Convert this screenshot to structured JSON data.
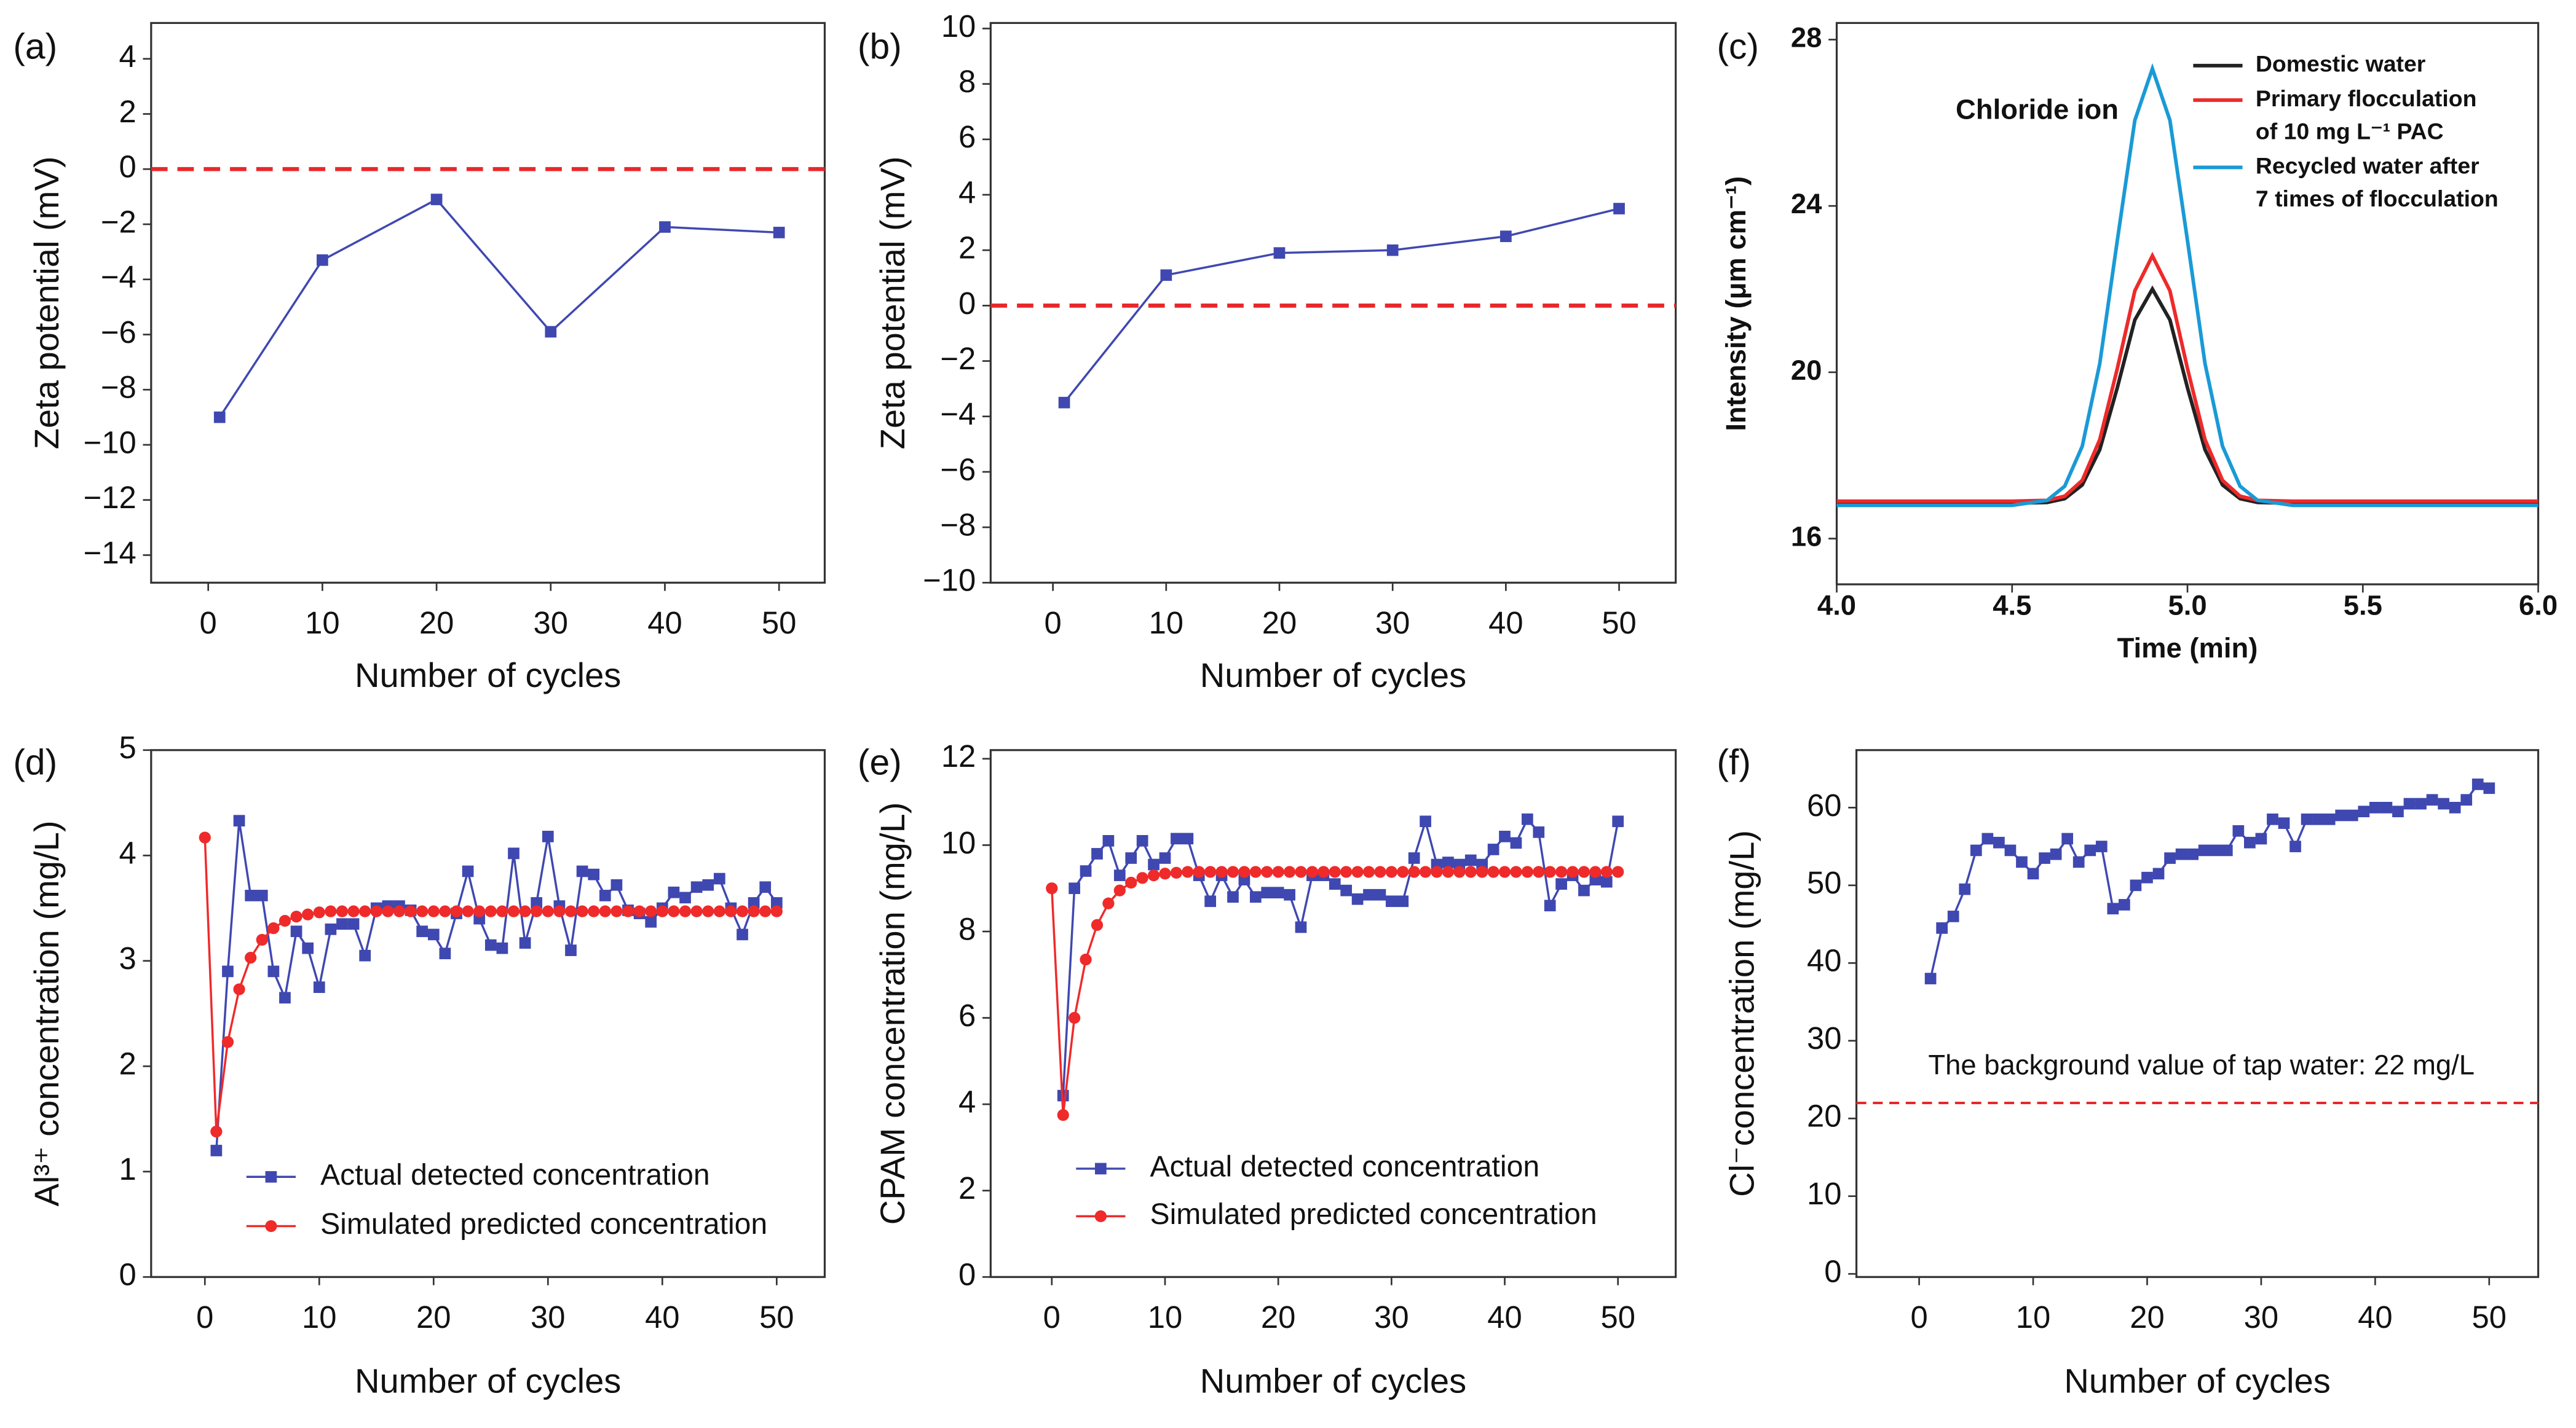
{
  "chart_data": [
    {
      "type": "line",
      "label": "(a)",
      "x_label": "Number of cycles",
      "y_label": "Zeta potential (mV)",
      "xlim": [
        -5,
        54
      ],
      "ylim": [
        -15,
        5.3
      ],
      "xticks": [
        0,
        10,
        20,
        30,
        40,
        50
      ],
      "yticks": [
        {
          "value": -14,
          "label": "−14"
        },
        {
          "value": -12,
          "label": "−12"
        },
        {
          "value": -10,
          "label": "−10"
        },
        {
          "value": -8,
          "label": "−8"
        },
        {
          "value": -6,
          "label": "−6"
        },
        {
          "value": -4,
          "label": "−4"
        },
        {
          "value": -2,
          "label": "−2"
        },
        0,
        2,
        4
      ],
      "reference_line": 0,
      "reference_color": "#e8282b",
      "series": [
        {
          "color": "#3f48b0",
          "marker": "square",
          "x": [
            1,
            10,
            20,
            30,
            40,
            50
          ],
          "values": [
            -9,
            -3.3,
            -1.1,
            -5.9,
            -2.1,
            -2.3
          ]
        }
      ]
    },
    {
      "type": "line",
      "label": "(b)",
      "x_label": "Number of cycles",
      "y_label": "Zeta potential (mV)",
      "xlim": [
        -5.5,
        55
      ],
      "ylim": [
        -10,
        10.2
      ],
      "xticks": [
        0,
        10,
        20,
        30,
        40,
        50
      ],
      "yticks": [
        {
          "value": -10,
          "label": "−10"
        },
        {
          "value": -8,
          "label": "−8"
        },
        {
          "value": -6,
          "label": "−6"
        },
        {
          "value": -4,
          "label": "−4"
        },
        {
          "value": -2,
          "label": "−2"
        },
        0,
        2,
        4,
        6,
        8,
        10
      ],
      "reference_line": 0,
      "reference_color": "#e8282b",
      "series": [
        {
          "color": "#3f48b0",
          "marker": "square",
          "x": [
            1,
            10,
            20,
            30,
            40,
            50
          ],
          "values": [
            -3.5,
            1.1,
            1.9,
            2.0,
            2.5,
            3.5
          ]
        }
      ]
    },
    {
      "type": "line",
      "label": "(c)",
      "x_label": "Time (min)",
      "y_label": "Intensity (μm cm⁻¹)",
      "annotation": "Chloride ion",
      "xlim": [
        4,
        6
      ],
      "ylim": [
        14.9,
        28.4
      ],
      "xticks": [
        {
          "value": 4,
          "label": "4.0"
        },
        {
          "value": 4.5,
          "label": "4.5"
        },
        {
          "value": 5,
          "label": "5.0"
        },
        {
          "value": 5.5,
          "label": "5.5"
        },
        {
          "value": 6,
          "label": "6.0"
        }
      ],
      "yticks": [
        16,
        20,
        24,
        28
      ],
      "series": [
        {
          "name": "Domestic water",
          "color": "#222222",
          "marker": "none",
          "x": [
            4.0,
            4.5,
            4.6,
            4.65,
            4.7,
            4.75,
            4.8,
            4.85,
            4.9,
            4.95,
            5.0,
            5.05,
            5.1,
            5.15,
            5.2,
            5.3,
            6.0
          ],
          "values": [
            16.85,
            16.85,
            16.87,
            16.96,
            17.29,
            18.14,
            19.63,
            21.26,
            22.0,
            21.26,
            19.63,
            18.14,
            17.29,
            16.96,
            16.87,
            16.85,
            16.85
          ]
        },
        {
          "name": "Primary flocculation of 10 mg L⁻¹ PAC",
          "color": "#ee2a2a",
          "marker": "none",
          "x": [
            4.0,
            4.5,
            4.6,
            4.65,
            4.7,
            4.75,
            4.8,
            4.85,
            4.9,
            4.95,
            5.0,
            5.05,
            5.1,
            5.15,
            5.2,
            5.3,
            6.0
          ],
          "values": [
            16.9,
            16.9,
            16.92,
            17.02,
            17.4,
            18.38,
            20.09,
            21.96,
            22.8,
            21.96,
            20.09,
            18.38,
            17.4,
            17.02,
            16.92,
            16.9,
            16.9
          ]
        },
        {
          "name": "Recycled water after 7 times of flocculation",
          "color": "#1a9ad6",
          "marker": "none",
          "x": [
            4.0,
            4.5,
            4.6,
            4.65,
            4.7,
            4.75,
            4.8,
            4.85,
            4.9,
            4.95,
            5.0,
            5.05,
            5.1,
            5.15,
            5.2,
            5.3,
            6.0
          ],
          "values": [
            16.8,
            16.8,
            16.92,
            17.26,
            18.22,
            20.21,
            23.17,
            26.06,
            27.3,
            26.06,
            23.17,
            20.21,
            18.22,
            17.26,
            16.92,
            16.8,
            16.8
          ]
        }
      ]
    },
    {
      "type": "line",
      "label": "(d)",
      "x_label": "Number of cycles",
      "y_label": "Al³⁺ concentration (mg/L)",
      "xlim": [
        -4.7,
        54.2
      ],
      "ylim": [
        0,
        5
      ],
      "xticks": [
        0,
        10,
        20,
        30,
        40,
        50
      ],
      "yticks": [
        0,
        1,
        2,
        3,
        4,
        5
      ],
      "series": [
        {
          "name": "Actual detected concentration",
          "color": "#3f48b0",
          "marker": "square",
          "x": [
            1,
            2,
            3,
            4,
            5,
            6,
            7,
            8,
            9,
            10,
            11,
            12,
            13,
            14,
            15,
            16,
            17,
            18,
            19,
            20,
            21,
            22,
            23,
            24,
            25,
            26,
            27,
            28,
            29,
            30,
            31,
            32,
            33,
            34,
            35,
            36,
            37,
            38,
            39,
            40,
            41,
            42,
            43,
            44,
            45,
            46,
            47,
            48,
            49,
            50
          ],
          "values": [
            1.2,
            2.9,
            4.33,
            3.62,
            3.62,
            2.9,
            2.65,
            3.28,
            3.12,
            2.75,
            3.3,
            3.35,
            3.35,
            3.05,
            3.5,
            3.52,
            3.52,
            3.48,
            3.28,
            3.25,
            3.07,
            3.45,
            3.85,
            3.4,
            3.15,
            3.12,
            4.02,
            3.17,
            3.55,
            4.18,
            3.52,
            3.1,
            3.85,
            3.82,
            3.62,
            3.72,
            3.48,
            3.45,
            3.37,
            3.5,
            3.65,
            3.6,
            3.7,
            3.72,
            3.78,
            3.5,
            3.25,
            3.55,
            3.7,
            3.55
          ]
        },
        {
          "name": "Simulated predicted concentration",
          "color": "#ef2a2a",
          "marker": "circle",
          "x": [
            0,
            1,
            2,
            3,
            4,
            5,
            6,
            7,
            8,
            9,
            10,
            11,
            12,
            13,
            14,
            15,
            16,
            17,
            18,
            19,
            20,
            21,
            22,
            23,
            24,
            25,
            26,
            27,
            28,
            29,
            30,
            31,
            32,
            33,
            34,
            35,
            36,
            37,
            38,
            39,
            40,
            41,
            42,
            43,
            44,
            45,
            46,
            47,
            48,
            49,
            50
          ],
          "values": [
            4.17,
            1.38,
            2.23,
            2.73,
            3.03,
            3.2,
            3.31,
            3.38,
            3.42,
            3.44,
            3.46,
            3.47,
            3.47,
            3.47,
            3.47,
            3.47,
            3.47,
            3.47,
            3.47,
            3.47,
            3.47,
            3.47,
            3.47,
            3.47,
            3.47,
            3.47,
            3.47,
            3.47,
            3.47,
            3.47,
            3.47,
            3.47,
            3.47,
            3.47,
            3.47,
            3.47,
            3.47,
            3.47,
            3.47,
            3.47,
            3.47,
            3.47,
            3.47,
            3.47,
            3.47,
            3.47,
            3.47,
            3.47,
            3.47,
            3.47,
            3.47
          ]
        }
      ]
    },
    {
      "type": "line",
      "label": "(e)",
      "x_label": "Number of cycles",
      "y_label": "CPAM concentration (mg/L)",
      "xlim": [
        -5.4,
        55.1
      ],
      "ylim": [
        0,
        12.2
      ],
      "xticks": [
        0,
        10,
        20,
        30,
        40,
        50
      ],
      "yticks": [
        0,
        2,
        4,
        6,
        8,
        10,
        12
      ],
      "series": [
        {
          "name": "Actual detected concentration",
          "color": "#3f48b0",
          "marker": "square",
          "x": [
            1,
            2,
            3,
            4,
            5,
            6,
            7,
            8,
            9,
            10,
            11,
            12,
            13,
            14,
            15,
            16,
            17,
            18,
            19,
            20,
            21,
            22,
            23,
            24,
            25,
            26,
            27,
            28,
            29,
            30,
            31,
            32,
            33,
            34,
            35,
            36,
            37,
            38,
            39,
            40,
            41,
            42,
            43,
            44,
            45,
            46,
            47,
            48,
            49,
            50
          ],
          "values": [
            4.2,
            9.0,
            9.4,
            9.8,
            10.1,
            9.3,
            9.7,
            10.1,
            9.55,
            9.7,
            10.15,
            10.15,
            9.3,
            8.7,
            9.3,
            8.8,
            9.2,
            8.8,
            8.9,
            8.9,
            8.85,
            8.1,
            9.3,
            9.3,
            9.1,
            8.95,
            8.75,
            8.85,
            8.85,
            8.7,
            8.7,
            9.7,
            10.55,
            9.55,
            9.6,
            9.55,
            9.65,
            9.55,
            9.9,
            10.2,
            10.05,
            10.6,
            10.3,
            8.6,
            9.1,
            9.3,
            8.95,
            9.2,
            9.15,
            10.55
          ]
        },
        {
          "name": "Simulated predicted concentration",
          "color": "#ef2a2a",
          "marker": "circle",
          "x": [
            0,
            1,
            2,
            3,
            4,
            5,
            6,
            7,
            8,
            9,
            10,
            11,
            12,
            13,
            14,
            15,
            16,
            17,
            18,
            19,
            20,
            21,
            22,
            23,
            24,
            25,
            26,
            27,
            28,
            29,
            30,
            31,
            32,
            33,
            34,
            35,
            36,
            37,
            38,
            39,
            40,
            41,
            42,
            43,
            44,
            45,
            46,
            47,
            48,
            49,
            50
          ],
          "values": [
            9.0,
            3.75,
            6.0,
            7.35,
            8.15,
            8.65,
            8.95,
            9.13,
            9.24,
            9.3,
            9.34,
            9.36,
            9.38,
            9.38,
            9.38,
            9.38,
            9.38,
            9.38,
            9.38,
            9.38,
            9.38,
            9.38,
            9.38,
            9.38,
            9.38,
            9.38,
            9.38,
            9.38,
            9.38,
            9.38,
            9.38,
            9.38,
            9.38,
            9.38,
            9.38,
            9.38,
            9.38,
            9.38,
            9.38,
            9.38,
            9.38,
            9.38,
            9.38,
            9.38,
            9.38,
            9.38,
            9.38,
            9.38,
            9.38,
            9.38,
            9.38
          ]
        }
      ]
    },
    {
      "type": "line",
      "label": "(f)",
      "x_label": "Number of cycles",
      "y_label": "Cl⁻concentration (mg/L)",
      "annotation": "The background value of tap water: 22 mg/L",
      "xlim": [
        -5.5,
        54.3
      ],
      "ylim": [
        -0.4,
        67.4
      ],
      "xticks": [
        0,
        10,
        20,
        30,
        40,
        50
      ],
      "yticks": [
        0,
        10,
        20,
        30,
        40,
        50,
        60
      ],
      "reference_line": 22,
      "reference_color": "#e8282b",
      "series": [
        {
          "color": "#3f48b0",
          "marker": "square",
          "x": [
            1,
            2,
            3,
            4,
            5,
            6,
            7,
            8,
            9,
            10,
            11,
            12,
            13,
            14,
            15,
            16,
            17,
            18,
            19,
            20,
            21,
            22,
            23,
            24,
            25,
            26,
            27,
            28,
            29,
            30,
            31,
            32,
            33,
            34,
            35,
            36,
            37,
            38,
            39,
            40,
            41,
            42,
            43,
            44,
            45,
            46,
            47,
            48,
            49,
            50
          ],
          "values": [
            38,
            44.5,
            46,
            49.5,
            54.5,
            56,
            55.5,
            54.5,
            53,
            51.5,
            53.5,
            54,
            56,
            53,
            54.5,
            55,
            47,
            47.5,
            50,
            51,
            51.5,
            53.5,
            54,
            54,
            54.5,
            54.5,
            54.5,
            57,
            55.5,
            56,
            58.5,
            58,
            55,
            58.5,
            58.5,
            58.5,
            59,
            59,
            59.5,
            60,
            60,
            59.5,
            60.5,
            60.5,
            61,
            60.5,
            60,
            61,
            63,
            62.5
          ]
        }
      ]
    }
  ]
}
